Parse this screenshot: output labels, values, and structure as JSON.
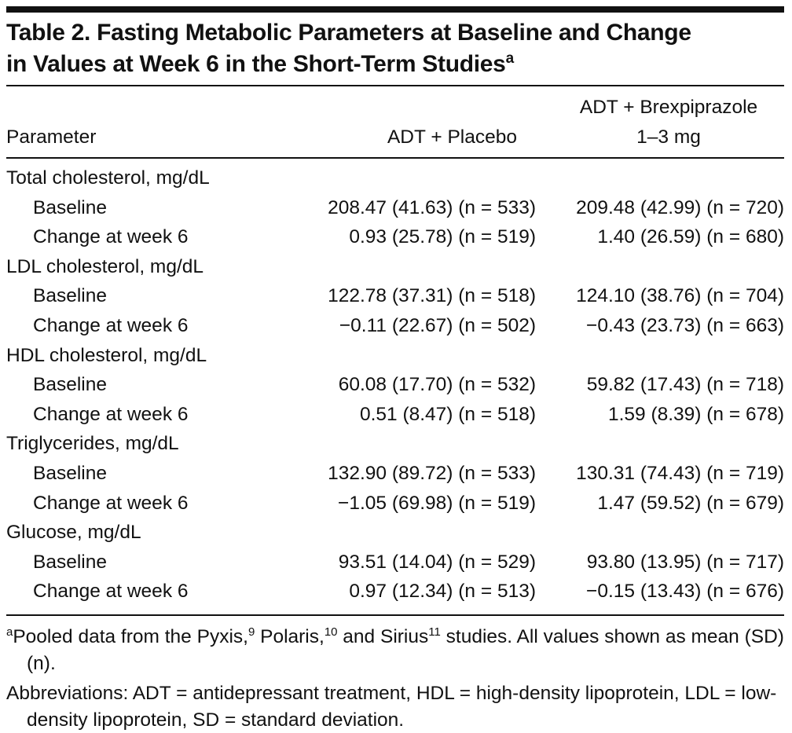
{
  "header": {
    "title": "Table 2. Fasting Metabolic Parameters at Baseline and Change in Values at Week 6 in the Short-Term Studies",
    "title_note": "a"
  },
  "table": {
    "columns": [
      "Parameter",
      "ADT + Placebo",
      [
        "ADT + Brexpiprazole",
        "1–3 mg"
      ]
    ],
    "groups": [
      {
        "name": "Total cholesterol, mg/dL",
        "rows": [
          [
            "Baseline",
            "208.47 (41.63) (n = 533)",
            "209.48 (42.99) (n = 720)"
          ],
          [
            "Change at week 6",
            "0.93 (25.78) (n = 519)",
            "1.40 (26.59) (n = 680)"
          ]
        ]
      },
      {
        "name": "LDL cholesterol, mg/dL",
        "rows": [
          [
            "Baseline",
            "122.78 (37.31) (n = 518)",
            "124.10 (38.76) (n = 704)"
          ],
          [
            "Change at week 6",
            "−0.11 (22.67) (n = 502)",
            "−0.43 (23.73) (n = 663)"
          ]
        ]
      },
      {
        "name": "HDL cholesterol, mg/dL",
        "rows": [
          [
            "Baseline",
            "60.08 (17.70) (n = 532)",
            "59.82 (17.43) (n = 718)"
          ],
          [
            "Change at week 6",
            "0.51 (8.47) (n = 518)",
            "1.59 (8.39) (n = 678)"
          ]
        ]
      },
      {
        "name": "Triglycerides, mg/dL",
        "rows": [
          [
            "Baseline",
            "132.90 (89.72) (n = 533)",
            "130.31 (74.43) (n = 719)"
          ],
          [
            "Change at week 6",
            "−1.05 (69.98) (n = 519)",
            "1.47 (59.52) (n = 679)"
          ]
        ]
      },
      {
        "name": "Glucose, mg/dL",
        "rows": [
          [
            "Baseline",
            "93.51 (14.04) (n = 529)",
            "93.80 (13.95) (n = 717)"
          ],
          [
            "Change at week 6",
            "0.97 (12.34) (n = 513)",
            "−0.15 (13.43) (n = 676)"
          ]
        ]
      }
    ]
  },
  "footnotes": [
    {
      "mark": "a",
      "parts": [
        {
          "text": "Pooled data from the Pyxis,"
        },
        {
          "sup": "9"
        },
        {
          "text": " Polaris,"
        },
        {
          "sup": "10"
        },
        {
          "text": " and Sirius"
        },
        {
          "sup": "11"
        },
        {
          "text": " studies. All values shown as mean (SD) (n)."
        }
      ]
    }
  ],
  "abbreviations": "Abbreviations: ADT = antidepressant treatment, HDL = high-density lipoprotein, LDL = low-density lipoprotein, SD = standard deviation."
}
